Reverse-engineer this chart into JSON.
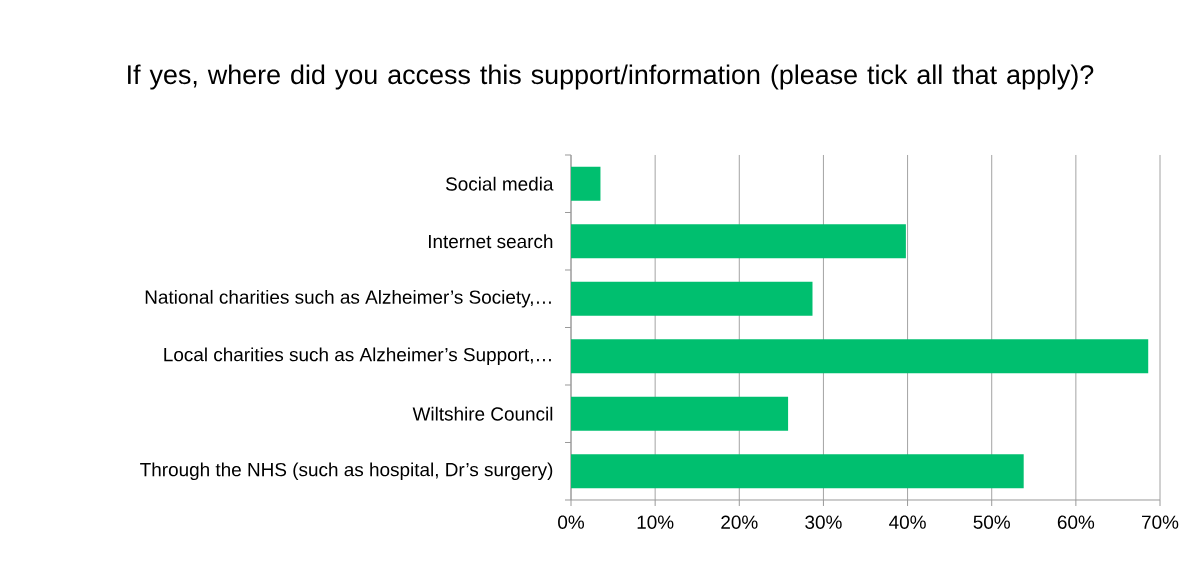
{
  "chart_data": {
    "type": "bar",
    "orientation": "horizontal",
    "title": "If yes, where did you access this support/information (please tick all that apply)?",
    "categories": [
      "Social media",
      "Internet search",
      "National charities such as Alzheimer’s Society,…",
      "Local charities such as Alzheimer’s Support,…",
      "Wiltshire Council",
      "Through the NHS (such as hospital, Dr’s surgery)"
    ],
    "values": [
      3.5,
      39.8,
      28.7,
      68.6,
      25.8,
      53.8
    ],
    "color": "#00bf6f",
    "xlim": [
      0,
      70
    ],
    "xticks": [
      {
        "value": 0,
        "label": "0%"
      },
      {
        "value": 10,
        "label": "10%"
      },
      {
        "value": 20,
        "label": "20%"
      },
      {
        "value": 30,
        "label": "30%"
      },
      {
        "value": 40,
        "label": "40%"
      },
      {
        "value": 50,
        "label": "50%"
      },
      {
        "value": 60,
        "label": "60%"
      },
      {
        "value": 70,
        "label": "70%"
      }
    ],
    "grid": "x"
  }
}
